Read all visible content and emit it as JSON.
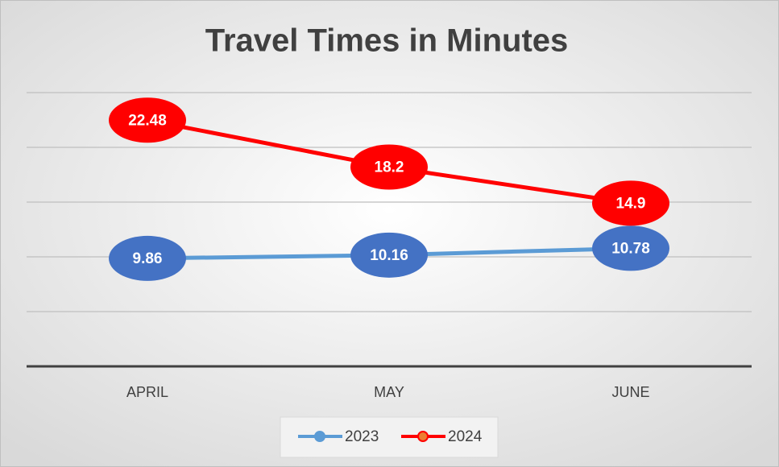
{
  "chart_data": {
    "type": "line",
    "title": "Travel Times in Minutes",
    "categories": [
      "APRIL",
      "MAY",
      "JUNE"
    ],
    "series": [
      {
        "name": "2023",
        "color": "#5b9bd5",
        "label_color": "#4472c4",
        "values": [
          9.86,
          10.16,
          10.78
        ]
      },
      {
        "name": "2024",
        "color": "#ff0000",
        "label_color": "#ff0000",
        "values": [
          22.48,
          18.2,
          14.9
        ]
      }
    ],
    "ylim": [
      0,
      25
    ],
    "yticks": [
      0,
      5,
      10,
      15,
      20,
      25
    ],
    "grid": true,
    "legend": "bottom"
  }
}
